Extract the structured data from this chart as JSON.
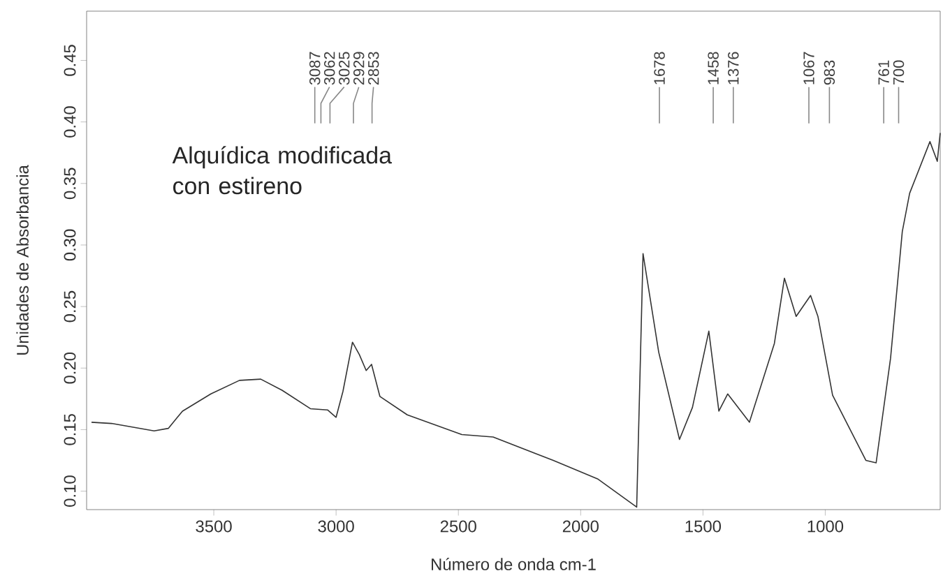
{
  "chart_data": {
    "type": "line",
    "xlabel": "Número de onda cm-1",
    "ylabel": "Unidades de Absorbancia",
    "x": [
      4000,
      3918,
      3744,
      3686,
      3628,
      3512,
      3395,
      3308,
      3221,
      3105,
      3035,
      3000,
      2972,
      2933,
      2905,
      2877,
      2855,
      2821,
      2709,
      2486,
      2358,
      2112,
      1931,
      1771,
      1745,
      1681,
      1596,
      1543,
      1476,
      1435,
      1399,
      1310,
      1208,
      1167,
      1119,
      1060,
      1030,
      970,
      834,
      792,
      733,
      685,
      655,
      572,
      542,
      530
    ],
    "series": [
      {
        "color": "#333333",
        "values": [
          0.156,
          0.155,
          0.149,
          0.151,
          0.165,
          0.179,
          0.19,
          0.191,
          0.182,
          0.167,
          0.166,
          0.16,
          0.181,
          0.221,
          0.211,
          0.198,
          0.203,
          0.177,
          0.162,
          0.146,
          0.144,
          0.125,
          0.11,
          0.087,
          0.293,
          0.213,
          0.142,
          0.168,
          0.23,
          0.165,
          0.179,
          0.156,
          0.22,
          0.273,
          0.242,
          0.259,
          0.242,
          0.178,
          0.125,
          0.123,
          0.208,
          0.311,
          0.342,
          0.384,
          0.368,
          0.391
        ]
      }
    ],
    "xlim": [
      4020,
      530
    ],
    "ylim": [
      0.085,
      0.49
    ],
    "xticks": [
      3500,
      3000,
      2500,
      2000,
      1500,
      1000
    ],
    "yticks": [
      {
        "value": 0.1,
        "label": "0.10"
      },
      0.15,
      {
        "value": 0.2,
        "label": "0.20"
      },
      0.25,
      {
        "value": 0.3,
        "label": "0.30"
      },
      0.35,
      {
        "value": 0.4,
        "label": "0.40"
      },
      0.45
    ],
    "annotations": [
      "Alquídica modificada con estireno"
    ],
    "ref_lines": [
      {
        "axis": "x",
        "value": 3087,
        "label": "3087",
        "color": "#888888"
      },
      {
        "axis": "x",
        "value": 3062,
        "label": "3062",
        "color": "#888888"
      },
      {
        "axis": "x",
        "value": 3025,
        "label": "3025",
        "color": "#888888"
      },
      {
        "axis": "x",
        "value": 2929,
        "label": "2929",
        "color": "#888888"
      },
      {
        "axis": "x",
        "value": 2853,
        "label": "2853",
        "color": "#888888"
      },
      {
        "axis": "x",
        "value": 1678,
        "label": "1678",
        "color": "#888888"
      },
      {
        "axis": "x",
        "value": 1458,
        "label": "1458",
        "color": "#888888"
      },
      {
        "axis": "x",
        "value": 1376,
        "label": "1376",
        "color": "#888888"
      },
      {
        "axis": "x",
        "value": 1067,
        "label": "1067",
        "color": "#888888"
      },
      {
        "axis": "x",
        "value": 983,
        "label": "983",
        "color": "#888888"
      },
      {
        "axis": "x",
        "value": 761,
        "label": "761",
        "color": "#888888"
      },
      {
        "axis": "x",
        "value": 700,
        "label": "700",
        "color": "#888888"
      }
    ]
  }
}
